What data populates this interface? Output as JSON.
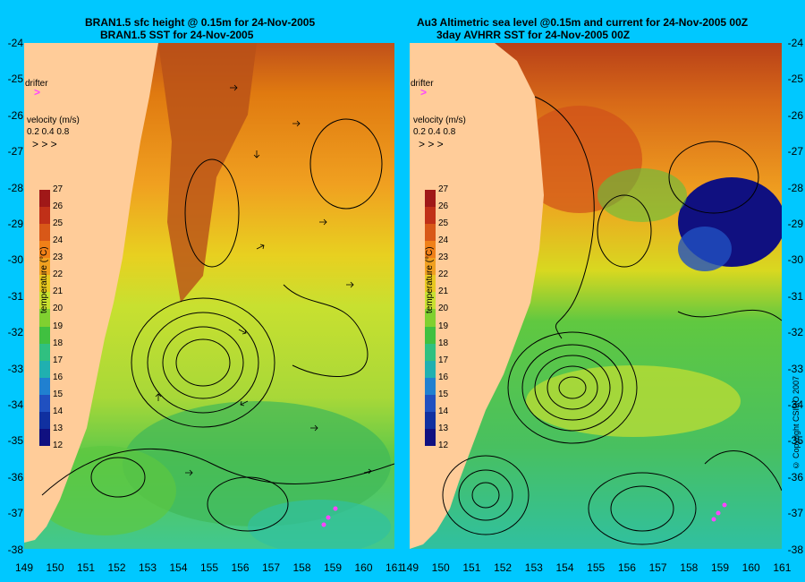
{
  "left_panel": {
    "title_line1": "BRAN1.5 sfc height @ 0.15m for 24-Nov-2005",
    "title_line2": "BRAN1.5 SST for 24-Nov-2005"
  },
  "right_panel": {
    "title_line1": "Au3 Altimetric sea level  @0.15m and current for 24-Nov-2005 00Z",
    "title_line2": "3day AVHRR SST for 24-Nov-2005 00Z"
  },
  "legend": {
    "drifter_label": "drifter",
    "velocity_label": "velocity (m/s)",
    "velocity_scale": "0.2 0.4 0.8",
    "temperature_label": "temperature (°C)",
    "colorbar_ticks": [
      "27",
      "26",
      "25",
      "24",
      "23",
      "22",
      "21",
      "20",
      "19",
      "18",
      "17",
      "16",
      "15",
      "14",
      "13",
      "12"
    ]
  },
  "axes": {
    "lat_ticks": [
      "-24",
      "-25",
      "-26",
      "-27",
      "-28",
      "-29",
      "-30",
      "-31",
      "-32",
      "-33",
      "-34",
      "-35",
      "-36",
      "-37",
      "-38"
    ],
    "lon_ticks": [
      "149",
      "150",
      "151",
      "152",
      "153",
      "154",
      "155",
      "156",
      "157",
      "158",
      "159",
      "160",
      "161"
    ]
  },
  "copyright": "© Copyright CSIRO 2007",
  "colors": {
    "background": "#00c8ff",
    "land": "#ffcc99",
    "warm": "#d2691e",
    "cool": "#33cc66",
    "drifter": "#ff44ff"
  }
}
